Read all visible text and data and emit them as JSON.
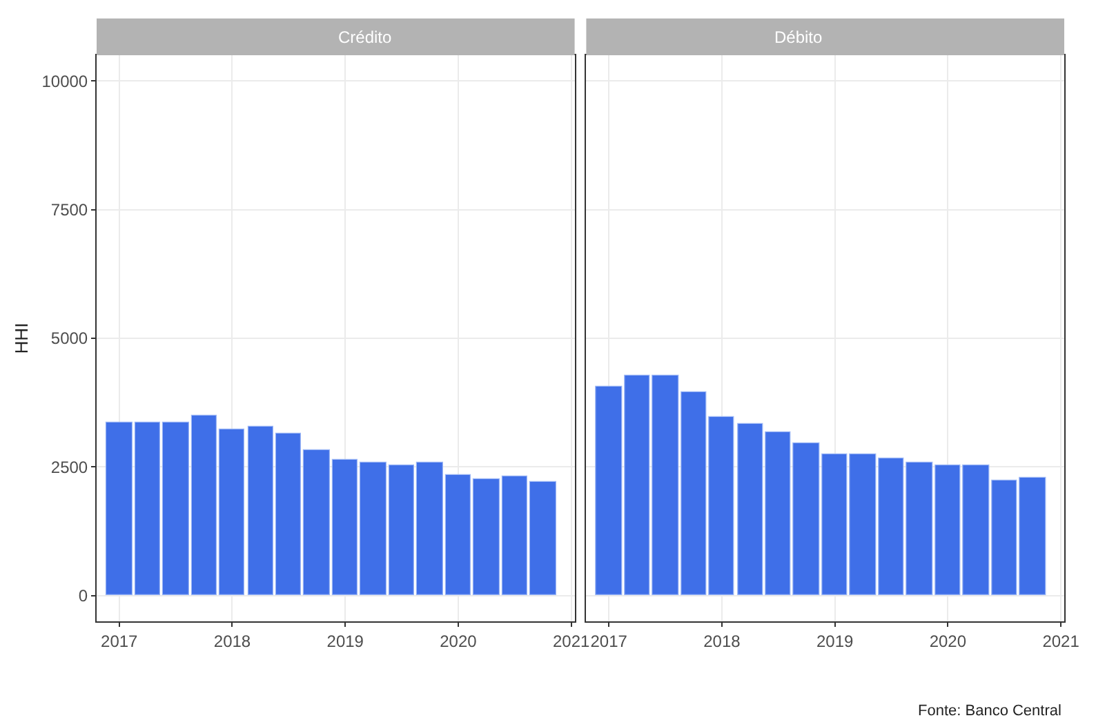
{
  "chart_data": [
    {
      "type": "bar",
      "title": "Crédito",
      "ylabel": "HHI",
      "x": [
        2017,
        2017.25,
        2017.5,
        2017.75,
        2018,
        2018.25,
        2018.5,
        2018.75,
        2019,
        2019.25,
        2019.5,
        2019.75,
        2020,
        2020.25,
        2020.5,
        2020.75
      ],
      "series": [
        {
          "color": "#3f6fe8",
          "values": [
            3360,
            3360,
            3360,
            3490,
            3240,
            3280,
            3140,
            2830,
            2650,
            2590,
            2530,
            2590,
            2340,
            2270,
            2310,
            2210
          ]
        }
      ],
      "xlim": [
        2016.8,
        2021.03
      ],
      "xticks": [
        2017,
        2018,
        2019,
        2020,
        2021
      ],
      "ylim": [
        -500,
        10500
      ],
      "yticks": [
        0,
        2500,
        5000,
        7500,
        10000
      ],
      "grid": true
    },
    {
      "type": "bar",
      "title": "Débito",
      "x": [
        2017,
        2017.25,
        2017.5,
        2017.75,
        2018,
        2018.25,
        2018.5,
        2018.75,
        2019,
        2019.25,
        2019.5,
        2019.75,
        2020,
        2020.25,
        2020.5,
        2020.75
      ],
      "series": [
        {
          "color": "#3f6fe8",
          "values": [
            4050,
            4280,
            4280,
            3960,
            3460,
            3350,
            3170,
            2950,
            2750,
            2750,
            2660,
            2590,
            2530,
            2530,
            2240,
            2280
          ]
        }
      ],
      "xlim": [
        2016.8,
        2021.03
      ],
      "xticks": [
        2017,
        2018,
        2019,
        2020,
        2021
      ],
      "ylim": [
        -500,
        10500
      ],
      "yticks": [
        0,
        2500,
        5000,
        7500,
        10000
      ],
      "grid": true,
      "tick_labels": "x",
      "annotations": [
        "Fonte: Banco Central"
      ]
    }
  ]
}
